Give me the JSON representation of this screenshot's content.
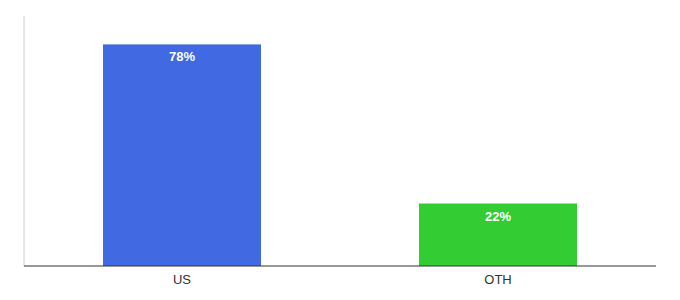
{
  "chart_data": {
    "type": "bar",
    "categories": [
      "US",
      "OTH"
    ],
    "values": [
      78,
      22
    ],
    "value_labels": [
      "78%",
      "22%"
    ],
    "colors": [
      "#4169e1",
      "#33cc33"
    ],
    "ylim": [
      0,
      88
    ],
    "data_labels": true,
    "tick_labels": "x"
  }
}
